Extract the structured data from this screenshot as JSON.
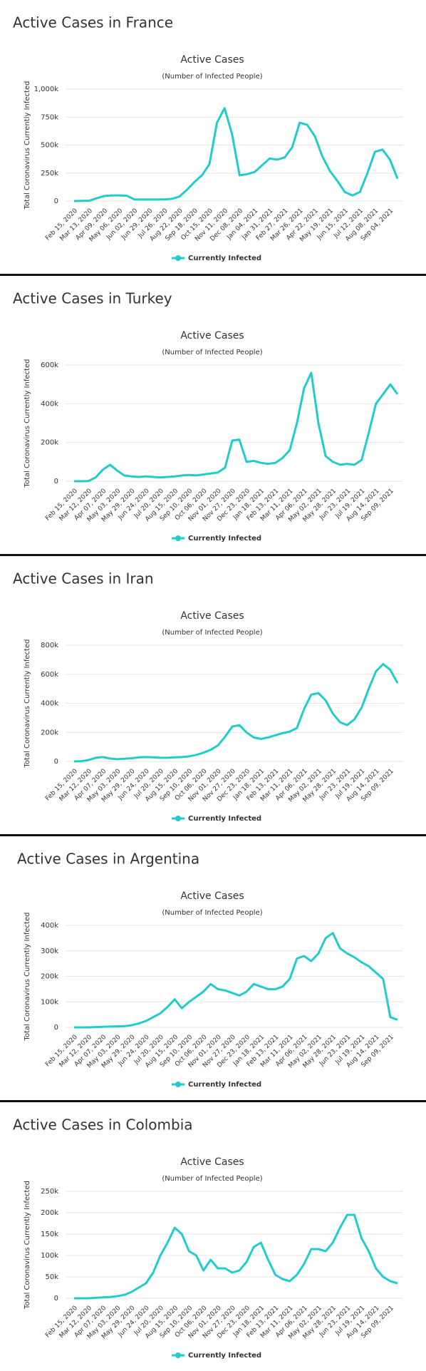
{
  "chart_data": [
    {
      "type": "line",
      "title": "Active Cases in France",
      "chart_title": "Active Cases",
      "chart_subtitle": "(Number of Infected People)",
      "y_label": "Total Coronavirus Currently Infected",
      "categories": [
        "Feb 15, 2020",
        null,
        "Mar 13, 2020",
        null,
        "Apr 09, 2020",
        null,
        "May 06, 2020",
        null,
        "Jun 02, 2020",
        null,
        "Jun 29, 2020",
        null,
        "Jul 26, 2020",
        null,
        "Aug 22, 2020",
        null,
        "Sep 18, 2020",
        null,
        "Oct 15, 2020",
        null,
        "Nov 11, 2020",
        null,
        "Dec 08, 2020",
        null,
        "Jan 04, 2021",
        null,
        "Jan 31, 2021",
        null,
        "Feb 27, 2021",
        null,
        "Mar 26, 2021",
        null,
        "Apr 22, 2021",
        null,
        "May 19, 2021",
        null,
        "Jun 15, 2021",
        null,
        "Jul 12, 2021",
        null,
        "Aug 08, 2021",
        null,
        "Sep 04, 2021",
        null
      ],
      "series": [
        {
          "name": "Currently Infected",
          "color": "#22cccc",
          "values": [
            0,
            1000,
            3000,
            25000,
            45000,
            50000,
            50000,
            48000,
            15000,
            14000,
            14000,
            14000,
            15000,
            20000,
            40000,
            100000,
            170000,
            230000,
            330000,
            700000,
            830000,
            600000,
            230000,
            240000,
            260000,
            320000,
            380000,
            370000,
            390000,
            480000,
            700000,
            680000,
            580000,
            400000,
            270000,
            180000,
            80000,
            50000,
            80000,
            250000,
            440000,
            460000,
            370000,
            200000
          ]
        }
      ],
      "ylim": [
        0,
        1000000
      ],
      "yticks": [
        0,
        {
          "value": 250000,
          "label": "250k"
        },
        {
          "value": 500000,
          "label": "500k"
        },
        {
          "value": 750000,
          "label": "750k"
        },
        {
          "value": 1000000,
          "label": "1,000k"
        }
      ],
      "grid": true
    },
    {
      "type": "line",
      "title": "Active Cases in Turkey",
      "chart_title": "Active Cases",
      "chart_subtitle": "(Number of Infected People)",
      "y_label": "Total Coronavirus Currently Infected",
      "categories": [
        "Feb 15, 2020",
        null,
        "Mar 12, 2020",
        null,
        "Apr 07, 2020",
        null,
        "May 03, 2020",
        null,
        "May 29, 2020",
        null,
        "Jun 24, 2020",
        null,
        "Jul 20, 2020",
        null,
        "Aug 15, 2020",
        null,
        "Sep 10, 2020",
        null,
        "Oct 06, 2020",
        null,
        "Nov 01, 2020",
        null,
        "Nov 27, 2020",
        null,
        "Dec 23, 2020",
        null,
        "Jan 18, 2021",
        null,
        "Feb 13, 2021",
        null,
        "Mar 11, 2021",
        null,
        "Apr 06, 2021",
        null,
        "May 02, 2021",
        null,
        "May 28, 2021",
        null,
        "Jun 23, 2021",
        null,
        "Jul 19, 2021",
        null,
        "Aug 14, 2021",
        null,
        "Sep 09, 2021",
        null
      ],
      "series": [
        {
          "name": "Currently Infected",
          "color": "#22cccc",
          "values": [
            0,
            0,
            1000,
            20000,
            60000,
            85000,
            55000,
            30000,
            25000,
            22000,
            25000,
            22000,
            20000,
            22000,
            25000,
            30000,
            32000,
            30000,
            35000,
            40000,
            45000,
            70000,
            210000,
            215000,
            100000,
            105000,
            95000,
            90000,
            95000,
            120000,
            160000,
            300000,
            480000,
            560000,
            300000,
            130000,
            100000,
            85000,
            90000,
            85000,
            110000,
            250000,
            400000,
            450000,
            500000,
            450000
          ]
        }
      ],
      "ylim": [
        0,
        600000
      ],
      "yticks": [
        0,
        {
          "value": 200000,
          "label": "200k"
        },
        {
          "value": 400000,
          "label": "400k"
        },
        {
          "value": 600000,
          "label": "600k"
        }
      ],
      "grid": true
    },
    {
      "type": "line",
      "title": "Active Cases in Iran",
      "chart_title": "Active Cases",
      "chart_subtitle": "(Number of Infected People)",
      "y_label": "Total Coronavirus Currently Infected",
      "categories": [
        "Feb 15, 2020",
        null,
        "Mar 12, 2020",
        null,
        "Apr 07, 2020",
        null,
        "May 03, 2020",
        null,
        "May 29, 2020",
        null,
        "Jun 24, 2020",
        null,
        "Jul 20, 2020",
        null,
        "Aug 15, 2020",
        null,
        "Sep 10, 2020",
        null,
        "Oct 06, 2020",
        null,
        "Nov 01, 2020",
        null,
        "Nov 27, 2020",
        null,
        "Dec 23, 2020",
        null,
        "Jan 18, 2021",
        null,
        "Feb 13, 2021",
        null,
        "Mar 11, 2021",
        null,
        "Apr 06, 2021",
        null,
        "May 02, 2021",
        null,
        "May 28, 2021",
        null,
        "Jun 23, 2021",
        null,
        "Jul 19, 2021",
        null,
        "Aug 14, 2021",
        null,
        "Sep 09, 2021",
        null
      ],
      "series": [
        {
          "name": "Currently Infected",
          "color": "#22cccc",
          "values": [
            0,
            2000,
            10000,
            25000,
            30000,
            20000,
            15000,
            18000,
            22000,
            28000,
            30000,
            28000,
            25000,
            25000,
            28000,
            30000,
            35000,
            45000,
            60000,
            80000,
            110000,
            170000,
            240000,
            250000,
            200000,
            165000,
            155000,
            165000,
            180000,
            195000,
            205000,
            230000,
            360000,
            460000,
            470000,
            420000,
            330000,
            270000,
            250000,
            290000,
            370000,
            500000,
            620000,
            670000,
            630000,
            540000
          ]
        }
      ],
      "ylim": [
        0,
        800000
      ],
      "yticks": [
        0,
        {
          "value": 200000,
          "label": "200k"
        },
        {
          "value": 400000,
          "label": "400k"
        },
        {
          "value": 600000,
          "label": "600k"
        },
        {
          "value": 800000,
          "label": "800k"
        }
      ],
      "grid": true
    },
    {
      "type": "line",
      "title": "Active Cases in Argentina",
      "chart_title": "Active Cases",
      "chart_subtitle": "(Number of Infected People)",
      "y_label": "Total Coronavirus Currently Infected",
      "categories": [
        "Feb 15, 2020",
        null,
        "Mar 12, 2020",
        null,
        "Apr 07, 2020",
        null,
        "May 03, 2020",
        null,
        "May 29, 2020",
        null,
        "Jun 24, 2020",
        null,
        "Jul 20, 2020",
        null,
        "Aug 15, 2020",
        null,
        "Sep 10, 2020",
        null,
        "Oct 06, 2020",
        null,
        "Nov 01, 2020",
        null,
        "Nov 27, 2020",
        null,
        "Dec 23, 2020",
        null,
        "Jan 18, 2021",
        null,
        "Feb 13, 2021",
        null,
        "Mar 11, 2021",
        null,
        "Apr 06, 2021",
        null,
        "May 02, 2021",
        null,
        "May 28, 2021",
        null,
        "Jun 23, 2021",
        null,
        "Jul 19, 2021",
        null,
        "Aug 14, 2021",
        null,
        "Sep 09, 2021",
        null
      ],
      "series": [
        {
          "name": "Currently Infected",
          "color": "#22cccc",
          "values": [
            0,
            0,
            0,
            1000,
            2000,
            3000,
            4000,
            5000,
            8000,
            15000,
            25000,
            40000,
            55000,
            80000,
            110000,
            75000,
            100000,
            120000,
            140000,
            170000,
            150000,
            145000,
            135000,
            125000,
            140000,
            170000,
            160000,
            150000,
            150000,
            160000,
            190000,
            270000,
            280000,
            260000,
            290000,
            350000,
            370000,
            310000,
            290000,
            275000,
            255000,
            240000,
            215000,
            190000,
            40000,
            30000
          ]
        }
      ],
      "ylim": [
        0,
        400000
      ],
      "yticks": [
        0,
        {
          "value": 100000,
          "label": "100k"
        },
        {
          "value": 200000,
          "label": "200k"
        },
        {
          "value": 300000,
          "label": "300k"
        },
        {
          "value": 400000,
          "label": "400k"
        }
      ],
      "grid": true
    },
    {
      "type": "line",
      "title": "Active Cases in Colombia",
      "chart_title": "Active Cases",
      "chart_subtitle": "(Number of Infected People)",
      "y_label": "Total Coronavirus Currently Infected",
      "categories": [
        "Feb 15, 2020",
        null,
        "Mar 12, 2020",
        null,
        "Apr 07, 2020",
        null,
        "May 03, 2020",
        null,
        "May 29, 2020",
        null,
        "Jun 24, 2020",
        null,
        "Jul 20, 2020",
        null,
        "Aug 15, 2020",
        null,
        "Sep 10, 2020",
        null,
        "Oct 06, 2020",
        null,
        "Nov 01, 2020",
        null,
        "Nov 27, 2020",
        null,
        "Dec 23, 2020",
        null,
        "Jan 18, 2021",
        null,
        "Feb 13, 2021",
        null,
        "Mar 11, 2021",
        null,
        "Apr 06, 2021",
        null,
        "May 02, 2021",
        null,
        "May 28, 2021",
        null,
        "Jun 23, 2021",
        null,
        "Jul 19, 2021",
        null,
        "Aug 14, 2021",
        null,
        "Sep 09, 2021",
        null
      ],
      "series": [
        {
          "name": "Currently Infected",
          "color": "#22cccc",
          "values": [
            0,
            0,
            0,
            1000,
            2000,
            3000,
            5000,
            8000,
            15000,
            25000,
            35000,
            60000,
            100000,
            130000,
            165000,
            150000,
            110000,
            100000,
            65000,
            90000,
            70000,
            70000,
            60000,
            65000,
            85000,
            120000,
            130000,
            90000,
            55000,
            45000,
            40000,
            55000,
            80000,
            115000,
            115000,
            110000,
            130000,
            165000,
            195000,
            195000,
            140000,
            110000,
            70000,
            50000,
            40000,
            35000
          ]
        }
      ],
      "ylim": [
        0,
        250000
      ],
      "yticks": [
        0,
        {
          "value": 50000,
          "label": "50k"
        },
        {
          "value": 100000,
          "label": "100k"
        },
        {
          "value": 150000,
          "label": "150k"
        },
        {
          "value": 200000,
          "label": "200k"
        },
        {
          "value": 250000,
          "label": "250k"
        }
      ],
      "grid": true
    }
  ]
}
